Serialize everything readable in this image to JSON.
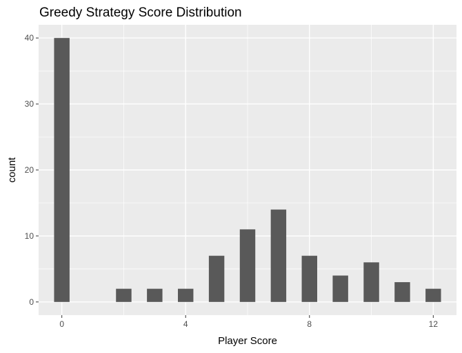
{
  "chart_data": {
    "type": "bar",
    "title": "Greedy Strategy Score Distribution",
    "xlabel": "Player Score",
    "ylabel": "count",
    "x": [
      0,
      2,
      3,
      4,
      5,
      6,
      7,
      8,
      9,
      10,
      11,
      12
    ],
    "values": [
      40,
      2,
      2,
      2,
      7,
      11,
      14,
      7,
      4,
      6,
      3,
      2
    ],
    "xlim": [
      -0.75,
      12.75
    ],
    "ylim": [
      -2,
      42
    ],
    "x_ticks": [
      0,
      4,
      8,
      12
    ],
    "x_tick_labels": [
      "0",
      "4",
      "8",
      "12"
    ],
    "y_ticks": [
      0,
      10,
      20,
      30,
      40
    ],
    "y_tick_labels": [
      "0",
      "10",
      "20",
      "30",
      "40"
    ],
    "grid": true,
    "colors": {
      "panel_background": "#ebebeb",
      "grid_major": "#ffffff",
      "bar_fill": "#595959",
      "tick_text": "#4d4d4d",
      "tick_mark": "#333333"
    }
  }
}
